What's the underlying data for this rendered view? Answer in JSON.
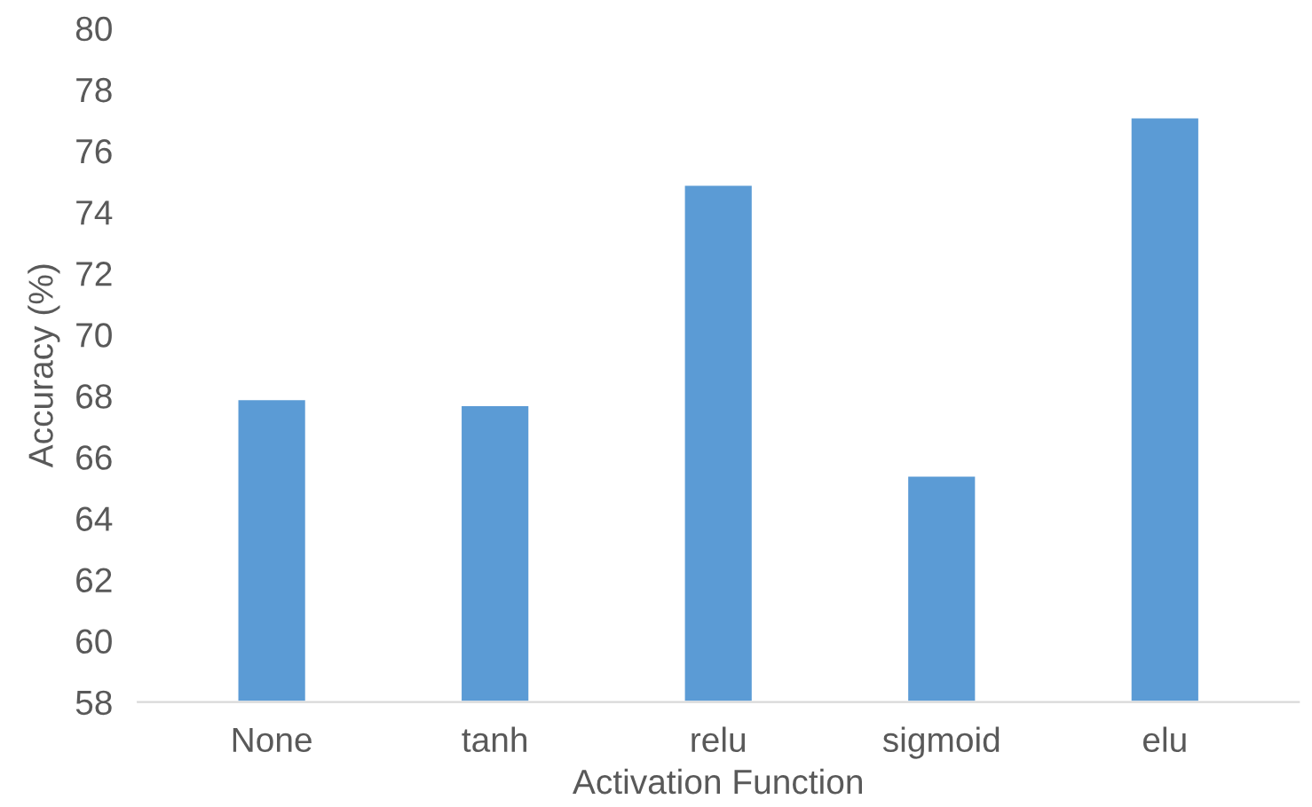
{
  "chart_data": {
    "type": "bar",
    "xlabel": "Activation Function",
    "ylabel": "Accuracy (%)",
    "categories": [
      "None",
      "tanh",
      "relu",
      "sigmoid",
      "elu"
    ],
    "values": [
      67.9,
      67.7,
      74.9,
      65.4,
      77.1
    ],
    "color": "#5b9bd5",
    "ylim": [
      58,
      80
    ],
    "yticks": [
      58,
      60,
      62,
      64,
      66,
      68,
      70,
      72,
      74,
      76,
      78,
      80
    ],
    "grid": false
  }
}
